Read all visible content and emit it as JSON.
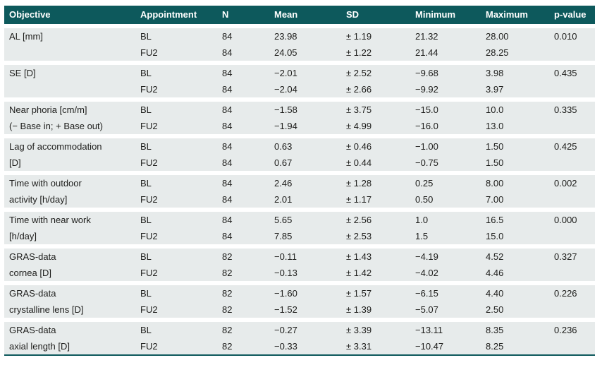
{
  "table": {
    "columns": [
      "Objective",
      "Appointment",
      "N",
      "Mean",
      "SD",
      "Minimum",
      "Maximum",
      "p-value"
    ],
    "groups": [
      {
        "objective_line1": "AL [mm]",
        "objective_line2": "",
        "rows": [
          {
            "appointment": "BL",
            "n": "84",
            "mean": "23.98",
            "sd": "± 1.19",
            "minimum": "21.32",
            "maximum": "28.00",
            "p_value": "0.010"
          },
          {
            "appointment": "FU2",
            "n": "84",
            "mean": "24.05",
            "sd": "± 1.22",
            "minimum": "21.44",
            "maximum": "28.25",
            "p_value": ""
          }
        ]
      },
      {
        "objective_line1": "SE [D]",
        "objective_line2": "",
        "rows": [
          {
            "appointment": "BL",
            "n": "84",
            "mean": "−2.01",
            "sd": "± 2.52",
            "minimum": "−9.68",
            "maximum": "3.98",
            "p_value": "0.435"
          },
          {
            "appointment": "FU2",
            "n": "84",
            "mean": "−2.04",
            "sd": "± 2.66",
            "minimum": "−9.92",
            "maximum": "3.97",
            "p_value": ""
          }
        ]
      },
      {
        "objective_line1": "Near phoria [cm/m]",
        "objective_line2": "(− Base in; + Base out)",
        "rows": [
          {
            "appointment": "BL",
            "n": "84",
            "mean": "−1.58",
            "sd": "± 3.75",
            "minimum": "−15.0",
            "maximum": "10.0",
            "p_value": "0.335"
          },
          {
            "appointment": "FU2",
            "n": "84",
            "mean": "−1.94",
            "sd": "± 4.99",
            "minimum": "−16.0",
            "maximum": "13.0",
            "p_value": ""
          }
        ]
      },
      {
        "objective_line1": "Lag of accommodation",
        "objective_line2": "[D]",
        "rows": [
          {
            "appointment": "BL",
            "n": "84",
            "mean": "0.63",
            "sd": "± 0.46",
            "minimum": "−1.00",
            "maximum": "1.50",
            "p_value": "0.425"
          },
          {
            "appointment": "FU2",
            "n": "84",
            "mean": "0.67",
            "sd": "± 0.44",
            "minimum": "−0.75",
            "maximum": "1.50",
            "p_value": ""
          }
        ]
      },
      {
        "objective_line1": "Time with outdoor",
        "objective_line2": "activity [h/day]",
        "rows": [
          {
            "appointment": "BL",
            "n": "84",
            "mean": "2.46",
            "sd": "± 1.28",
            "minimum": "0.25",
            "maximum": "8.00",
            "p_value": "0.002"
          },
          {
            "appointment": "FU2",
            "n": "84",
            "mean": "2.01",
            "sd": "± 1.17",
            "minimum": "0.50",
            "maximum": "7.00",
            "p_value": ""
          }
        ]
      },
      {
        "objective_line1": "Time with near work",
        "objective_line2": "[h/day]",
        "rows": [
          {
            "appointment": "BL",
            "n": "84",
            "mean": "5.65",
            "sd": "± 2.56",
            "minimum": "1.0",
            "maximum": "16.5",
            "p_value": "0.000"
          },
          {
            "appointment": "FU2",
            "n": "84",
            "mean": "7.85",
            "sd": "± 2.53",
            "minimum": "1.5",
            "maximum": "15.0",
            "p_value": ""
          }
        ]
      },
      {
        "objective_line1": "GRAS-data",
        "objective_line2": "cornea [D]",
        "rows": [
          {
            "appointment": "BL",
            "n": "82",
            "mean": "−0.11",
            "sd": "± 1.43",
            "minimum": "−4.19",
            "maximum": "4.52",
            "p_value": "0.327"
          },
          {
            "appointment": "FU2",
            "n": "82",
            "mean": "−0.13",
            "sd": "± 1.42",
            "minimum": "−4.02",
            "maximum": "4.46",
            "p_value": ""
          }
        ]
      },
      {
        "objective_line1": "GRAS-data",
        "objective_line2": "crystalline lens [D]",
        "rows": [
          {
            "appointment": "BL",
            "n": "82",
            "mean": "−1.60",
            "sd": "± 1.57",
            "minimum": "−6.15",
            "maximum": "4.40",
            "p_value": "0.226"
          },
          {
            "appointment": "FU2",
            "n": "82",
            "mean": "−1.52",
            "sd": "± 1.39",
            "minimum": "−5.07",
            "maximum": "2.50",
            "p_value": ""
          }
        ]
      },
      {
        "objective_line1": "GRAS-data",
        "objective_line2": "axial length [D]",
        "rows": [
          {
            "appointment": "BL",
            "n": "82",
            "mean": "−0.27",
            "sd": "± 3.39",
            "minimum": "−13.11",
            "maximum": "8.35",
            "p_value": "0.236"
          },
          {
            "appointment": "FU2",
            "n": "82",
            "mean": "−0.33",
            "sd": "± 3.31",
            "minimum": "−10.47",
            "maximum": "8.25",
            "p_value": ""
          }
        ]
      }
    ],
    "colors": {
      "header_bg": "#0d595c",
      "header_text": "#ffffff",
      "row_band_bg": "#e7ebeb",
      "body_text": "#1d1d1b",
      "bottom_rule": "#0d595c",
      "separator": "#ffffff"
    }
  }
}
